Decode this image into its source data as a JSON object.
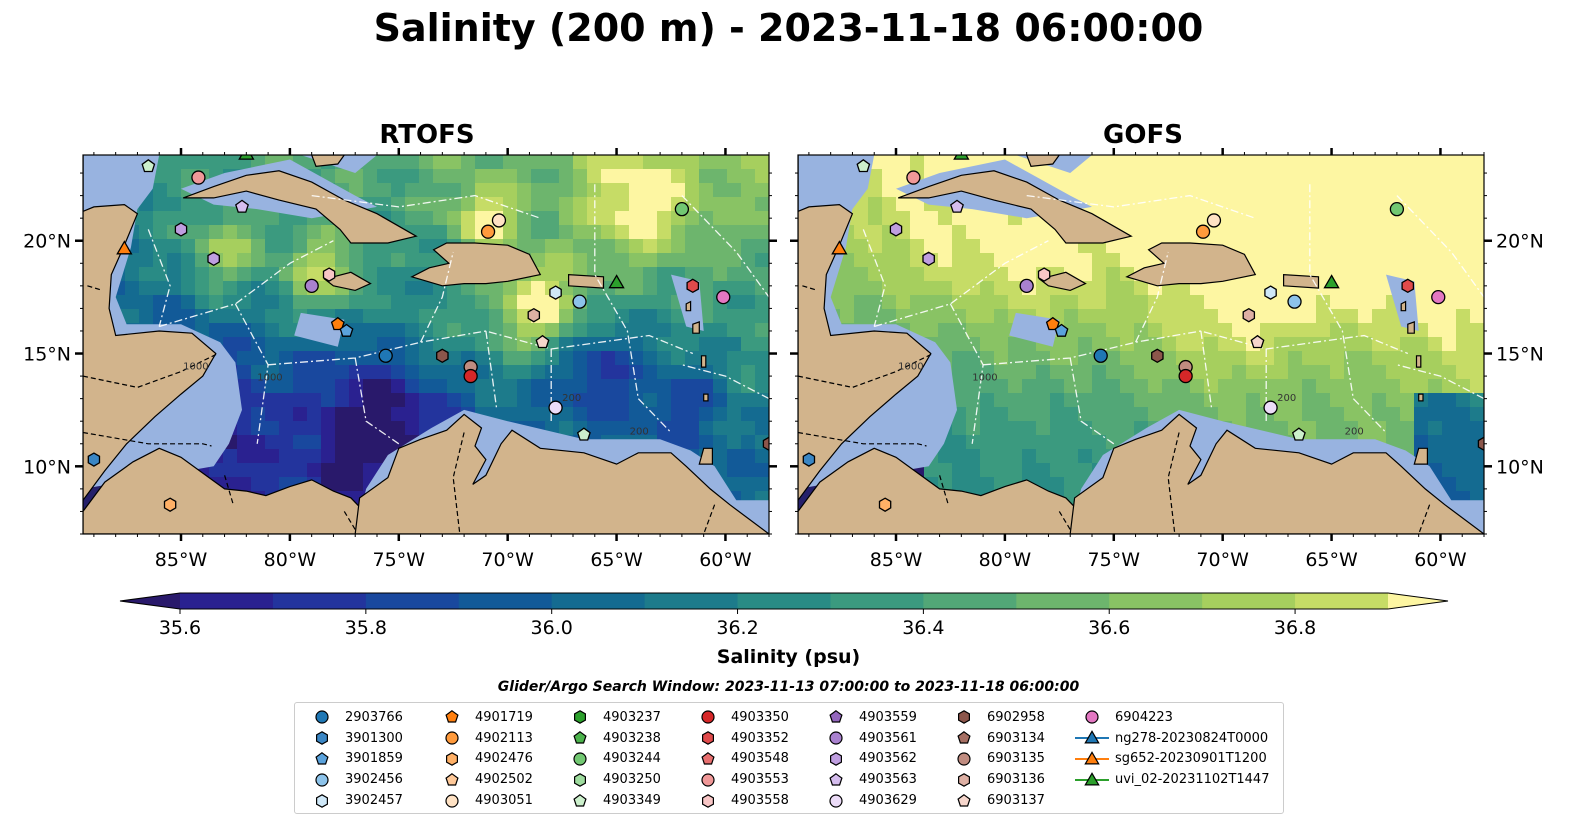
{
  "title": "Salinity (200 m) - 2023-11-18 06:00:00",
  "panels": [
    {
      "title": "RTOFS",
      "model": "rtofs"
    },
    {
      "title": "GOFS",
      "model": "gofs"
    }
  ],
  "map": {
    "lon_range": [
      -89.5,
      -58.0
    ],
    "lat_range": [
      7.0,
      23.8
    ],
    "lon_ticks": [
      -85,
      -80,
      -75,
      -70,
      -65,
      -60
    ],
    "lon_tick_labels": [
      "85°W",
      "80°W",
      "75°W",
      "70°W",
      "65°W",
      "60°W"
    ],
    "lat_ticks": [
      10,
      15,
      20
    ],
    "lat_tick_labels": [
      "10°N",
      "15°N",
      "20°N"
    ],
    "contour_labels": [
      "1000",
      "1000",
      "200",
      "200"
    ],
    "colors": {
      "land": "#d2b48c",
      "shelf": "#98b3e0",
      "deep": "#26206b",
      "front": "#fbf0a0"
    }
  },
  "colorbar": {
    "label": "Salinity (psu)",
    "ticks": [
      35.6,
      35.8,
      36.0,
      36.2,
      36.4,
      36.6,
      36.8
    ],
    "tick_labels": [
      "35.6",
      "35.8",
      "36.0",
      "36.2",
      "36.4",
      "36.6",
      "36.8"
    ],
    "levels": [
      35.5,
      35.6,
      35.7,
      35.8,
      35.9,
      36.0,
      36.1,
      36.2,
      36.3,
      36.4,
      36.5,
      36.6,
      36.7,
      36.8,
      36.9
    ],
    "colors": [
      "#29196b",
      "#2a2190",
      "#23349d",
      "#19489e",
      "#125a98",
      "#146b91",
      "#1d7b8b",
      "#298b85",
      "#3b9a7f",
      "#52a777",
      "#6db56d",
      "#89c364",
      "#a6cf5e",
      "#c6dc66",
      "#fdf6a2"
    ]
  },
  "search_window": "Glider/Argo Search Window: 2023-11-13 07:00:00 to 2023-11-18 06:00:00",
  "legend": [
    [
      {
        "label": "2903766",
        "shape": "circle",
        "color": "#1f77b4"
      },
      {
        "label": "3901300",
        "shape": "hexagon",
        "color": "#3a86c4"
      },
      {
        "label": "3901859",
        "shape": "pentagon",
        "color": "#5aa2dc"
      },
      {
        "label": "3902456",
        "shape": "circle",
        "color": "#8dc3ea"
      },
      {
        "label": "3902457",
        "shape": "hexagon",
        "color": "#cfe8f8"
      }
    ],
    [
      {
        "label": "4901719",
        "shape": "pentagon",
        "color": "#ff7f0e"
      },
      {
        "label": "4902113",
        "shape": "circle",
        "color": "#ff9a3c"
      },
      {
        "label": "4902476",
        "shape": "hexagon",
        "color": "#ffb066"
      },
      {
        "label": "4902502",
        "shape": "pentagon",
        "color": "#ffc999"
      },
      {
        "label": "4903051",
        "shape": "circle",
        "color": "#ffe2c4"
      }
    ],
    [
      {
        "label": "4903237",
        "shape": "hexagon",
        "color": "#2ca02c"
      },
      {
        "label": "4903238",
        "shape": "pentagon",
        "color": "#4cb34c"
      },
      {
        "label": "4903244",
        "shape": "circle",
        "color": "#72c872"
      },
      {
        "label": "4903250",
        "shape": "hexagon",
        "color": "#9edc9e"
      },
      {
        "label": "4903349",
        "shape": "pentagon",
        "color": "#ccf0cc"
      }
    ],
    [
      {
        "label": "4903350",
        "shape": "circle",
        "color": "#d62728"
      },
      {
        "label": "4903352",
        "shape": "hexagon",
        "color": "#e04a4b"
      },
      {
        "label": "4903548",
        "shape": "pentagon",
        "color": "#e86f6f"
      },
      {
        "label": "4903553",
        "shape": "circle",
        "color": "#f09898"
      },
      {
        "label": "4903558",
        "shape": "hexagon",
        "color": "#f8c6c6"
      }
    ],
    [
      {
        "label": "4903559",
        "shape": "pentagon",
        "color": "#9467bd"
      },
      {
        "label": "4903561",
        "shape": "circle",
        "color": "#a981cf"
      },
      {
        "label": "4903562",
        "shape": "hexagon",
        "color": "#bf9ee0"
      },
      {
        "label": "4903563",
        "shape": "pentagon",
        "color": "#d5bdee"
      },
      {
        "label": "4903629",
        "shape": "circle",
        "color": "#ecdcf8"
      }
    ],
    [
      {
        "label": "6902958",
        "shape": "hexagon",
        "color": "#8c564b"
      },
      {
        "label": "6903134",
        "shape": "pentagon",
        "color": "#a66f63"
      },
      {
        "label": "6903135",
        "shape": "circle",
        "color": "#c08c80"
      },
      {
        "label": "6903136",
        "shape": "hexagon",
        "color": "#deb0a4"
      },
      {
        "label": "6903137",
        "shape": "pentagon",
        "color": "#f6d6cc"
      }
    ],
    [
      {
        "label": "6904223",
        "shape": "circle",
        "color": "#e377c2"
      },
      {
        "label": "ng278-20230824T0000",
        "shape": "triangle",
        "color": "#1f77b4",
        "line": true
      },
      {
        "label": "sg652-20230901T1200",
        "shape": "triangle",
        "color": "#ff7f0e",
        "line": true
      },
      {
        "label": "uvi_02-20231102T1447",
        "shape": "triangle",
        "color": "#2ca02c",
        "line": true
      }
    ]
  ],
  "floats": [
    {
      "lon": -86.5,
      "lat": 23.3,
      "shape": "pentagon",
      "color": "#ccf0cc"
    },
    {
      "lon": -84.2,
      "lat": 22.8,
      "shape": "circle",
      "color": "#f09898"
    },
    {
      "lon": -85.0,
      "lat": 20.5,
      "shape": "hexagon",
      "color": "#bf9ee0"
    },
    {
      "lon": -83.5,
      "lat": 19.2,
      "shape": "hexagon",
      "color": "#bf9ee0"
    },
    {
      "lon": -82.2,
      "lat": 21.5,
      "shape": "pentagon",
      "color": "#d5bdee"
    },
    {
      "lon": -79.0,
      "lat": 18.0,
      "shape": "circle",
      "color": "#a981cf"
    },
    {
      "lon": -78.2,
      "lat": 18.5,
      "shape": "hexagon",
      "color": "#f8c6c6"
    },
    {
      "lon": -77.8,
      "lat": 16.3,
      "shape": "pentagon",
      "color": "#ff7f0e"
    },
    {
      "lon": -77.4,
      "lat": 16.0,
      "shape": "pentagon",
      "color": "#5aa2dc"
    },
    {
      "lon": -75.6,
      "lat": 14.9,
      "shape": "circle",
      "color": "#1f77b4"
    },
    {
      "lon": -73.0,
      "lat": 14.9,
      "shape": "hexagon",
      "color": "#8c564b"
    },
    {
      "lon": -71.7,
      "lat": 14.4,
      "shape": "circle",
      "color": "#c08c80"
    },
    {
      "lon": -71.7,
      "lat": 14.0,
      "shape": "circle",
      "color": "#d62728"
    },
    {
      "lon": -70.9,
      "lat": 20.4,
      "shape": "circle",
      "color": "#ff9a3c"
    },
    {
      "lon": -70.4,
      "lat": 20.9,
      "shape": "circle",
      "color": "#ffe2c4"
    },
    {
      "lon": -68.8,
      "lat": 16.7,
      "shape": "hexagon",
      "color": "#deb0a4"
    },
    {
      "lon": -68.4,
      "lat": 15.5,
      "shape": "pentagon",
      "color": "#f6d6cc"
    },
    {
      "lon": -67.8,
      "lat": 12.6,
      "shape": "circle",
      "color": "#ecdcf8"
    },
    {
      "lon": -67.8,
      "lat": 17.7,
      "shape": "hexagon",
      "color": "#cfe8f8"
    },
    {
      "lon": -66.7,
      "lat": 17.3,
      "shape": "circle",
      "color": "#8dc3ea"
    },
    {
      "lon": -66.5,
      "lat": 11.4,
      "shape": "pentagon",
      "color": "#ccf0cc"
    },
    {
      "lon": -62.0,
      "lat": 21.4,
      "shape": "circle",
      "color": "#72c872"
    },
    {
      "lon": -61.5,
      "lat": 18.0,
      "shape": "hexagon",
      "color": "#e04a4b"
    },
    {
      "lon": -60.1,
      "lat": 17.5,
      "shape": "circle",
      "color": "#e377c2"
    },
    {
      "lon": -58.0,
      "lat": 11.0,
      "shape": "hexagon",
      "color": "#8c564b"
    },
    {
      "lon": -89.0,
      "lat": 10.3,
      "shape": "hexagon",
      "color": "#3a86c4"
    },
    {
      "lon": -85.5,
      "lat": 8.3,
      "shape": "hexagon",
      "color": "#ffb066"
    },
    {
      "lon": -87.6,
      "lat": 19.6,
      "shape": "triangle",
      "color": "#ff7f0e"
    },
    {
      "lon": -65.0,
      "lat": 18.1,
      "shape": "triangle",
      "color": "#2ca02c"
    },
    {
      "lon": -82.0,
      "lat": 23.8,
      "shape": "triangle",
      "color": "#2ca02c"
    }
  ]
}
